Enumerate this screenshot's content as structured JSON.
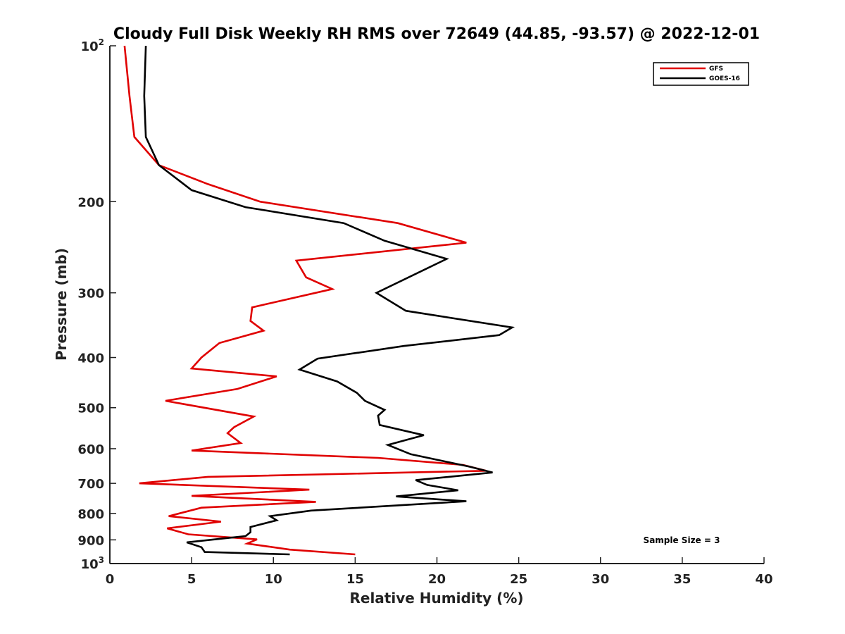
{
  "chart_data": {
    "type": "line",
    "title": "Cloudy Full Disk Weekly RH RMS over 72649 (44.85, -93.57) @ 2022-12-01",
    "xlabel": "Relative Humidity (%)",
    "ylabel": "Pressure (mb)",
    "xlim": [
      0,
      40
    ],
    "ylim": [
      100,
      1000
    ],
    "y_scale": "log",
    "y_reversed": true,
    "grid": false,
    "legend_placement": "top-right",
    "x_ticks": [
      "0",
      "5",
      "10",
      "15",
      "20",
      "25",
      "30",
      "35",
      "40"
    ],
    "y_ticks": [
      {
        "value": 100,
        "base": "10",
        "exp": "2"
      },
      {
        "value": 200,
        "label": "200"
      },
      {
        "value": 300,
        "label": "300"
      },
      {
        "value": 400,
        "label": "400"
      },
      {
        "value": 500,
        "label": "500"
      },
      {
        "value": 600,
        "label": "600"
      },
      {
        "value": 700,
        "label": "700"
      },
      {
        "value": 800,
        "label": "800"
      },
      {
        "value": 900,
        "label": "900"
      },
      {
        "value": 1000,
        "base": "10",
        "exp": "3"
      }
    ],
    "annotation": "Sample Size = 3",
    "series": [
      {
        "name": "GFS",
        "color": "#e00000",
        "points": [
          [
            0.9,
            100
          ],
          [
            1.2,
            125
          ],
          [
            1.5,
            150
          ],
          [
            3.0,
            170
          ],
          [
            6.0,
            185
          ],
          [
            9.2,
            200
          ],
          [
            17.6,
            220
          ],
          [
            21.8,
            240
          ],
          [
            11.4,
            260
          ],
          [
            12.0,
            280
          ],
          [
            13.6,
            295
          ],
          [
            8.7,
            320
          ],
          [
            8.6,
            340
          ],
          [
            9.4,
            355
          ],
          [
            6.7,
            375
          ],
          [
            5.6,
            400
          ],
          [
            5.0,
            420
          ],
          [
            10.2,
            435
          ],
          [
            7.8,
            460
          ],
          [
            3.4,
            485
          ],
          [
            8.8,
            520
          ],
          [
            7.6,
            545
          ],
          [
            7.2,
            560
          ],
          [
            8.0,
            585
          ],
          [
            5.0,
            605
          ],
          [
            16.4,
            625
          ],
          [
            21.6,
            645
          ],
          [
            23.0,
            662
          ],
          [
            6.0,
            680
          ],
          [
            1.8,
            700
          ],
          [
            12.2,
            720
          ],
          [
            5.0,
            740
          ],
          [
            12.6,
            760
          ],
          [
            5.6,
            780
          ],
          [
            3.6,
            810
          ],
          [
            6.8,
            830
          ],
          [
            3.5,
            855
          ],
          [
            4.8,
            878
          ],
          [
            9.0,
            898
          ],
          [
            8.4,
            915
          ],
          [
            11.0,
            940
          ],
          [
            15.0,
            960
          ]
        ]
      },
      {
        "name": "GOES-16",
        "color": "#000000",
        "points": [
          [
            2.2,
            100
          ],
          [
            2.1,
            125
          ],
          [
            2.2,
            150
          ],
          [
            3.0,
            170
          ],
          [
            5.0,
            190
          ],
          [
            8.3,
            205
          ],
          [
            14.3,
            220
          ],
          [
            16.8,
            238
          ],
          [
            20.6,
            258
          ],
          [
            16.3,
            300
          ],
          [
            18.1,
            325
          ],
          [
            24.6,
            350
          ],
          [
            23.8,
            362
          ],
          [
            18.0,
            380
          ],
          [
            12.7,
            402
          ],
          [
            11.6,
            422
          ],
          [
            13.9,
            445
          ],
          [
            15.1,
            468
          ],
          [
            15.6,
            485
          ],
          [
            16.8,
            505
          ],
          [
            16.4,
            518
          ],
          [
            16.5,
            540
          ],
          [
            19.2,
            565
          ],
          [
            17.0,
            590
          ],
          [
            18.4,
            615
          ],
          [
            22.0,
            650
          ],
          [
            23.4,
            667
          ],
          [
            18.7,
            690
          ],
          [
            19.4,
            705
          ],
          [
            21.3,
            722
          ],
          [
            17.5,
            742
          ],
          [
            21.8,
            758
          ],
          [
            12.3,
            790
          ],
          [
            9.8,
            810
          ],
          [
            10.2,
            825
          ],
          [
            8.6,
            850
          ],
          [
            8.6,
            870
          ],
          [
            8.3,
            885
          ],
          [
            4.7,
            910
          ],
          [
            5.6,
            930
          ],
          [
            5.8,
            950
          ],
          [
            11.0,
            960
          ]
        ]
      }
    ]
  }
}
